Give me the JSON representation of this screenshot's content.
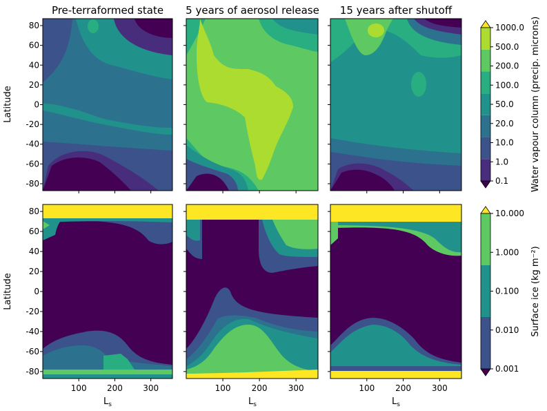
{
  "chart_data": {
    "type": "heatmap",
    "panel_titles": [
      "Pre-terraformed state",
      "5 years of aerosol release",
      "15 years after shutoff"
    ],
    "xlabel": "L",
    "xlabel_sub": "s",
    "ylabel": "Latitude",
    "xlim": [
      0,
      360
    ],
    "ylim": [
      -87,
      87
    ],
    "x_ticks": [
      100,
      200,
      300
    ],
    "y_ticks": [
      80,
      60,
      40,
      20,
      0,
      -20,
      -40,
      -60,
      -80
    ],
    "rows": [
      {
        "name": "water_vapour",
        "colorbar_label": "Water vapour column (precip. microns)",
        "levels": [
          "0.1",
          "1.0",
          "10.0",
          "20.0",
          "50.0",
          "100.0",
          "200.0",
          "500.0",
          "1000.0"
        ],
        "colors": [
          "#440154",
          "#472d7b",
          "#3b528b",
          "#2c728e",
          "#21918c",
          "#28ae80",
          "#5ec962",
          "#addc30",
          "#fde725"
        ]
      },
      {
        "name": "surface_ice",
        "colorbar_label": "Surface ice (kg m⁻²)",
        "levels": [
          "0.001",
          "0.010",
          "0.100",
          "1.000",
          "10.000"
        ],
        "colors": [
          "#440154",
          "#3b528b",
          "#21918c",
          "#5ec962",
          "#fde725"
        ]
      }
    ]
  }
}
